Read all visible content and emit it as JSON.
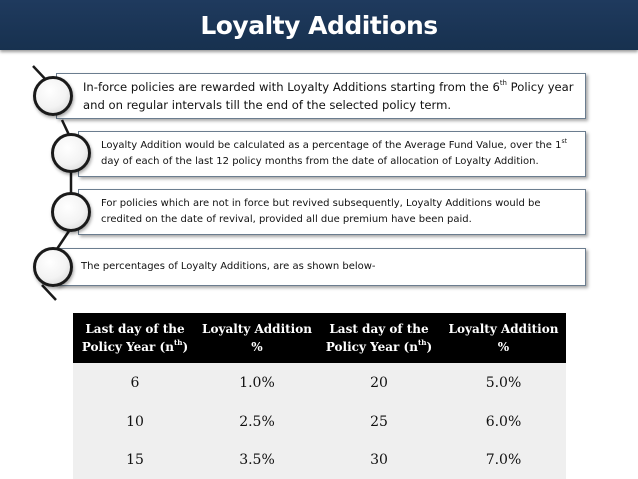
{
  "title": "Loyalty Additions",
  "points": [
    {
      "text": "In-force policies are rewarded with Loyalty Additions starting from the 6",
      "sup": "th",
      "text_after": " Policy year and on regular intervals till the end of the selected policy term."
    },
    {
      "text": "Loyalty Addition would be calculated as a percentage of the Average Fund Value, over the 1",
      "sup": "st",
      "text_after": " day of each of the last 12 policy months from the date of allocation of Loyalty Addition."
    },
    {
      "text": "For policies which are not in force but revived subsequently, Loyalty Additions would be credited on the date of revival, provided all due premium have been paid.",
      "sup": "",
      "text_after": ""
    },
    {
      "text": "The percentages of Loyalty Additions, are as shown below-",
      "sup": "",
      "text_after": ""
    }
  ],
  "table": {
    "headers": [
      {
        "text": "Last day of the Policy Year (n",
        "sup": "th",
        "after": ")"
      },
      {
        "text": "Loyalty Addition %",
        "sup": "",
        "after": ""
      },
      {
        "text": "Last day of the Policy Year (n",
        "sup": "th",
        "after": ")"
      },
      {
        "text": "Loyalty Addition %",
        "sup": "",
        "after": ""
      }
    ],
    "rows": [
      [
        "6",
        "1.0%",
        "20",
        "5.0%"
      ],
      [
        "10",
        "2.5%",
        "25",
        "6.0%"
      ],
      [
        "15",
        "3.5%",
        "30",
        "7.0%"
      ]
    ]
  }
}
